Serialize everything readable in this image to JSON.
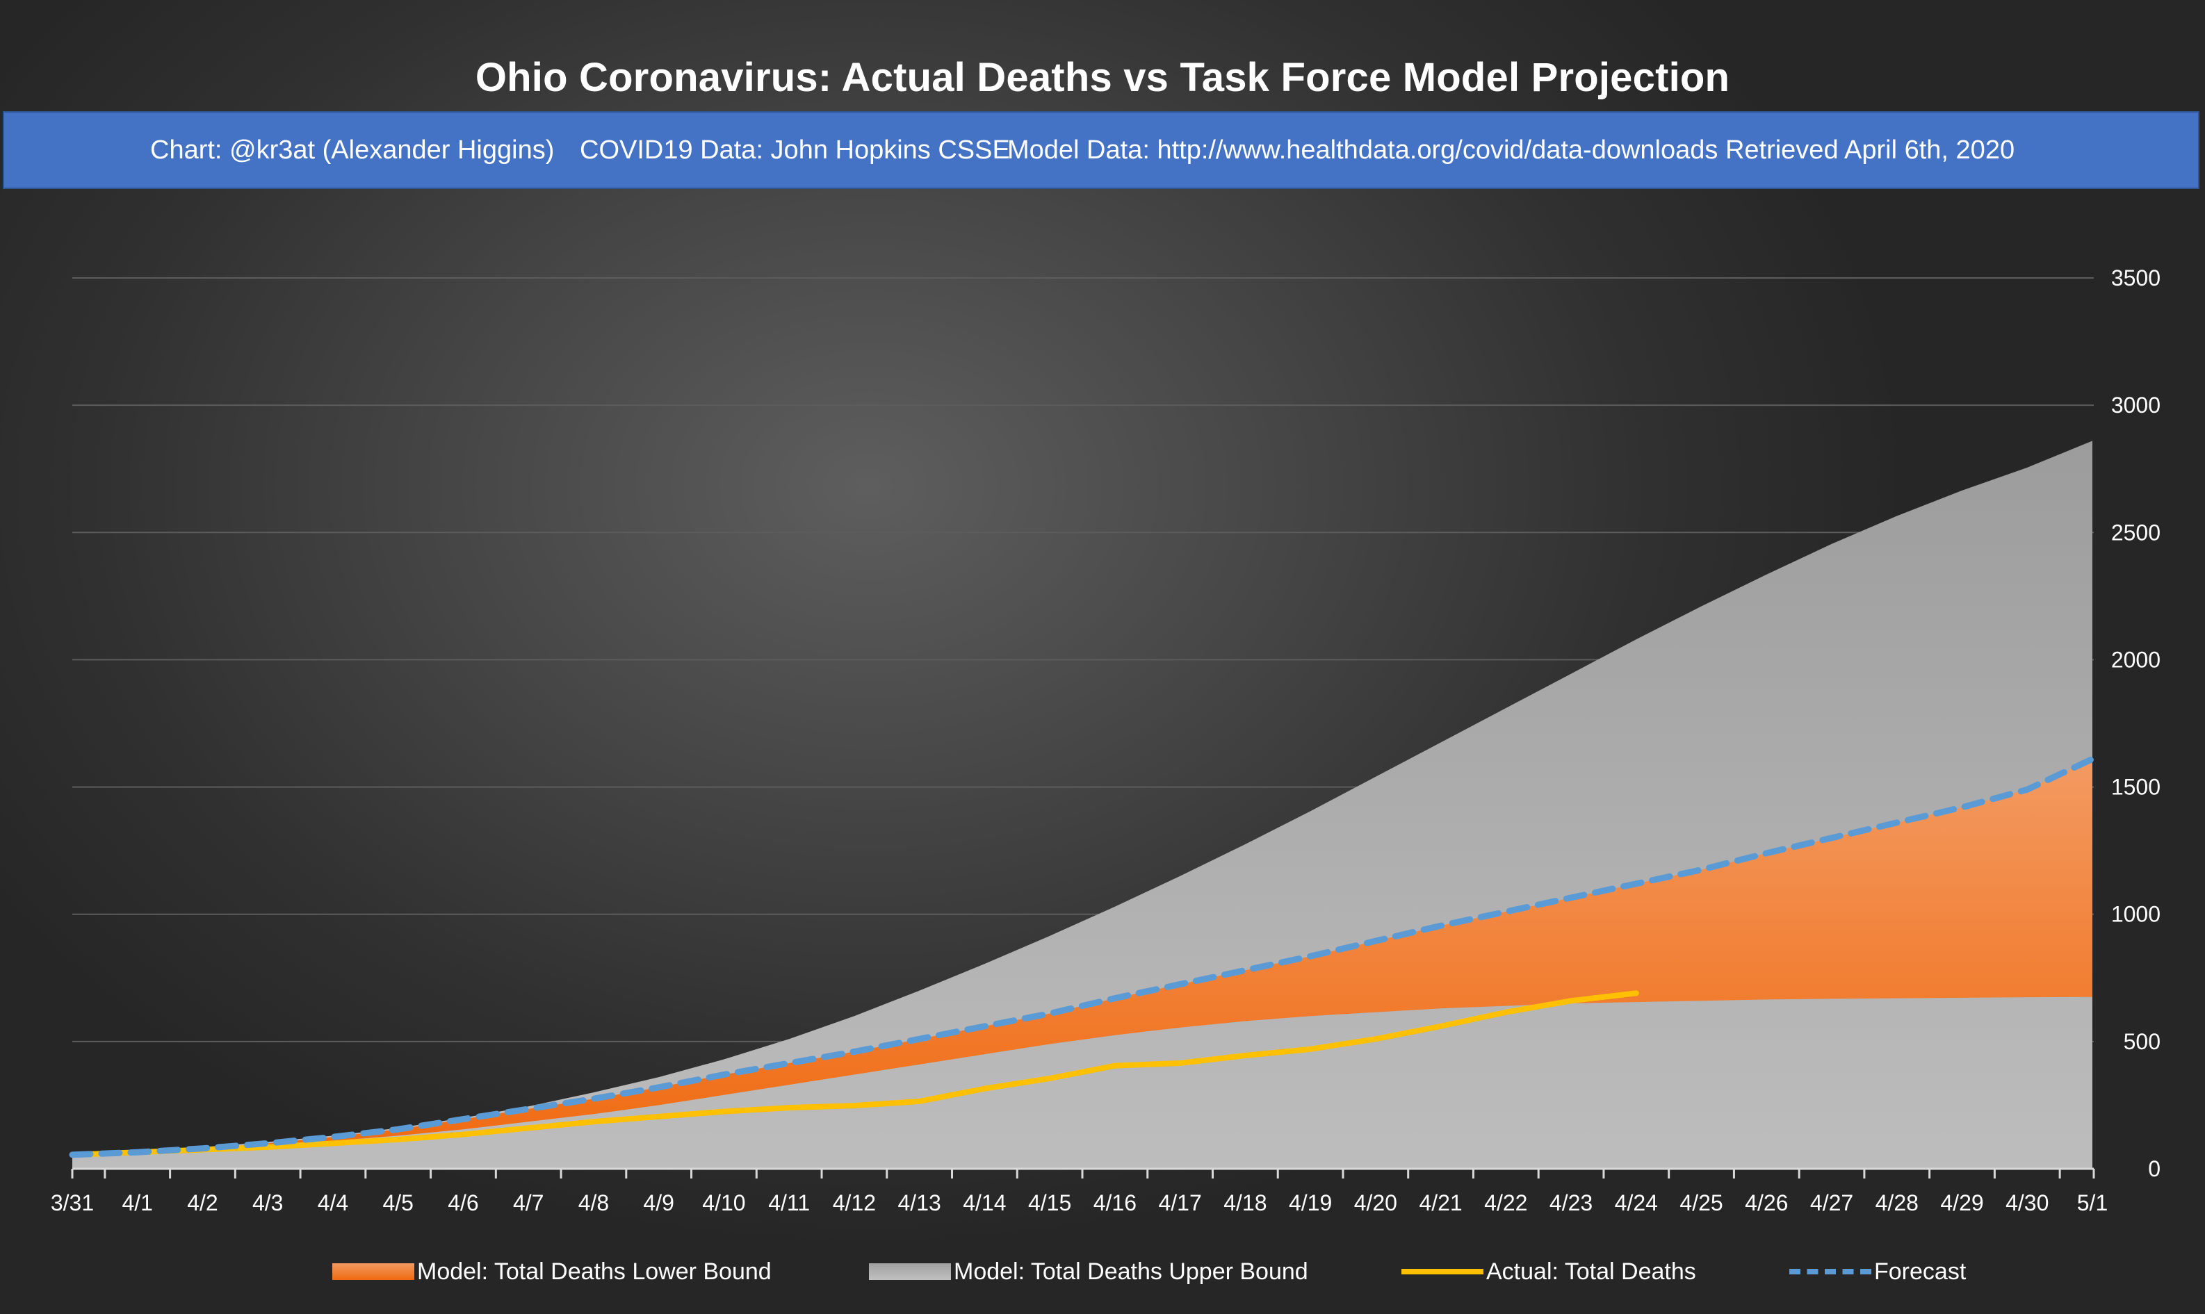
{
  "chart_data": {
    "type": "area",
    "title": "Ohio Coronavirus: Actual Deaths vs Task Force Model Projection",
    "subtitle": {
      "chart_credit": "Chart: @kr3at (Alexander Higgins)",
      "covid_source": "COVID19 Data: John Hopkins CSSE",
      "model_source": "Model Data: http://www.healthdata.org/covid/data-downloads Retrieved April 6th, 2020"
    },
    "categories": [
      "3/31",
      "4/1",
      "4/2",
      "4/3",
      "4/4",
      "4/5",
      "4/6",
      "4/7",
      "4/8",
      "4/9",
      "4/10",
      "4/11",
      "4/12",
      "4/13",
      "4/14",
      "4/15",
      "4/16",
      "4/17",
      "4/18",
      "4/19",
      "4/20",
      "4/21",
      "4/22",
      "4/23",
      "4/24",
      "4/25",
      "4/26",
      "4/27",
      "4/28",
      "4/29",
      "4/30",
      "5/1"
    ],
    "ylim": [
      0,
      3500
    ],
    "yticks": [
      0,
      500,
      1000,
      1500,
      2000,
      2500,
      3000,
      3500
    ],
    "ylabel": "",
    "xlabel": "",
    "grid": true,
    "legend_position": "bottom",
    "series": [
      {
        "name": "Model: Total Deaths Lower Bound",
        "kind": "area",
        "color": "#ed7d31",
        "values": [
          55,
          65,
          80,
          95,
          110,
          130,
          155,
          185,
          215,
          250,
          290,
          330,
          370,
          410,
          450,
          490,
          525,
          555,
          580,
          600,
          615,
          630,
          640,
          650,
          655,
          660,
          665,
          668,
          670,
          672,
          674,
          675
        ]
      },
      {
        "name": "Model: Total Deaths Upper Bound",
        "kind": "area",
        "color": "#a5a5a5",
        "values": [
          55,
          68,
          85,
          105,
          130,
          160,
          200,
          245,
          300,
          360,
          430,
          510,
          600,
          700,
          805,
          915,
          1030,
          1150,
          1275,
          1405,
          1540,
          1675,
          1810,
          1945,
          2080,
          2210,
          2335,
          2455,
          2565,
          2665,
          2755,
          2860
        ]
      },
      {
        "name": "Actual: Total Deaths",
        "kind": "line",
        "color": "#ffc000",
        "values": [
          55,
          65,
          75,
          85,
          100,
          115,
          135,
          160,
          185,
          205,
          225,
          240,
          248,
          265,
          315,
          355,
          405,
          415,
          445,
          470,
          510,
          560,
          615,
          660,
          690,
          null,
          null,
          null,
          null,
          null,
          null,
          null
        ]
      },
      {
        "name": "Forecast",
        "kind": "dashed-line",
        "color": "#5b9bd5",
        "values": [
          55,
          65,
          80,
          100,
          125,
          155,
          195,
          235,
          275,
          320,
          370,
          415,
          460,
          510,
          560,
          610,
          670,
          725,
          780,
          835,
          895,
          955,
          1010,
          1065,
          1120,
          1175,
          1240,
          1300,
          1360,
          1420,
          1490,
          1610
        ]
      }
    ]
  }
}
